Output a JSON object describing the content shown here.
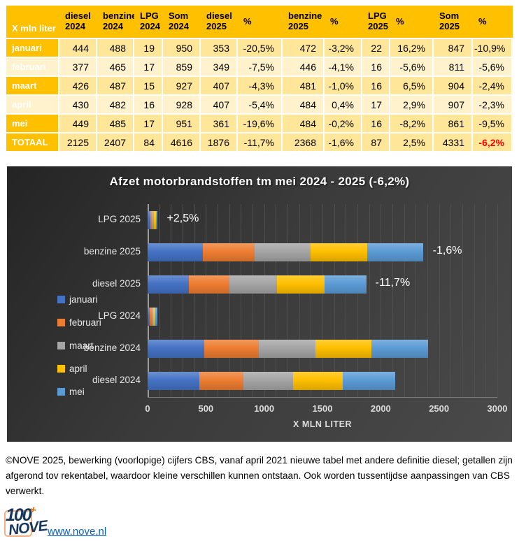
{
  "table": {
    "unit_label": "X mln liter",
    "columns": [
      "diesel 2024",
      "benzine 2024",
      "LPG 2024",
      "Som 2024",
      "diesel 2025",
      "%",
      "benzine 2025",
      "%",
      "LPG 2025",
      "%",
      "Som 2025",
      "%"
    ],
    "rows": [
      {
        "label": "januari",
        "values": [
          "444",
          "488",
          "19",
          "950",
          "353",
          "-20,5%",
          "472",
          "-3,2%",
          "22",
          "16,2%",
          "847",
          "-10,9%"
        ]
      },
      {
        "label": "februari",
        "values": [
          "377",
          "465",
          "17",
          "859",
          "349",
          "-7,5%",
          "446",
          "-4,1%",
          "16",
          "-5,6%",
          "811",
          "-5,6%"
        ]
      },
      {
        "label": "maart",
        "values": [
          "426",
          "487",
          "15",
          "927",
          "407",
          "-4,3%",
          "481",
          "-1,0%",
          "16",
          "6,5%",
          "904",
          "-2,4%"
        ]
      },
      {
        "label": "april",
        "values": [
          "430",
          "482",
          "16",
          "928",
          "407",
          "-5,4%",
          "484",
          "0,4%",
          "17",
          "2,9%",
          "907",
          "-2,3%"
        ]
      },
      {
        "label": "mei",
        "values": [
          "449",
          "485",
          "17",
          "951",
          "361",
          "-19,6%",
          "484",
          "-0,2%",
          "16",
          "-8,2%",
          "861",
          "-9,5%"
        ]
      },
      {
        "label": "TOTAAL",
        "values": [
          "2125",
          "2407",
          "84",
          "4616",
          "1876",
          "-11,7%",
          "2368",
          "-1,6%",
          "87",
          "2,5%",
          "4331",
          "-6,2%"
        ]
      }
    ],
    "header_color": "#FFC000",
    "row_color_odd": "#FFE699",
    "row_color_even": "#FFF2CC",
    "total_pct_color": "#FF0000"
  },
  "chart_data": {
    "type": "bar",
    "orientation": "horizontal-stacked",
    "title": "Afzet motorbrandstoffen tm mei 2024 - 2025 (-6,2%)",
    "xlabel": "X MLN LITER",
    "xlim": [
      0,
      3000
    ],
    "xticks": [
      0,
      500,
      1000,
      1500,
      2000,
      2500,
      3000
    ],
    "minor_grid_step": 100,
    "grid": true,
    "legend_position": "left",
    "categories": [
      "LPG 2025",
      "benzine 2025",
      "diesel 2025",
      "LPG 2024",
      "benzine 2024",
      "diesel 2024"
    ],
    "series": [
      {
        "name": "januari",
        "color": "#4472C4",
        "values": [
          22,
          472,
          353,
          19,
          488,
          444
        ]
      },
      {
        "name": "februari",
        "color": "#ED7D31",
        "values": [
          16,
          446,
          349,
          17,
          465,
          377
        ]
      },
      {
        "name": "maart",
        "color": "#A5A5A5",
        "values": [
          16,
          481,
          407,
          15,
          487,
          426
        ]
      },
      {
        "name": "april",
        "color": "#FFC000",
        "values": [
          17,
          484,
          407,
          16,
          482,
          430
        ]
      },
      {
        "name": "mei",
        "color": "#5B9BD5",
        "values": [
          16,
          484,
          361,
          17,
          485,
          449
        ]
      }
    ],
    "totals": [
      87,
      2368,
      1876,
      84,
      2407,
      2125
    ],
    "bar_labels": [
      "+2,5%",
      "-1,6%",
      "-11,7%",
      "",
      "",
      ""
    ]
  },
  "footer": {
    "copyright": "©NOVE 2025, bewerking (voorlopige) cijfers CBS, vanaf april 2021 nieuwe tabel met andere definitie diesel; getallen zijn afgerond tov rekentabel, waardoor kleine verschillen kunnen ontstaan. Ook worden tussentijdse aanpassingen van CBS verwerkt.",
    "link": "www.nove.nl"
  },
  "logo": {
    "line1": "100",
    "plus": "+",
    "line2": "NOVE"
  }
}
